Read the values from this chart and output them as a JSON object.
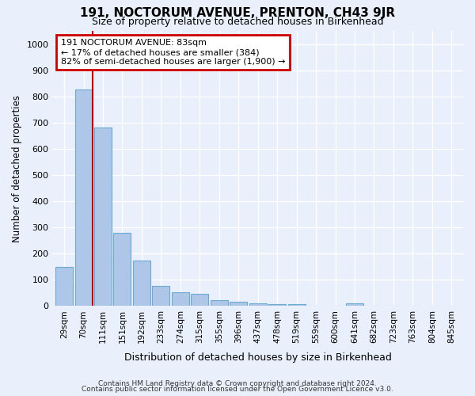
{
  "title": "191, NOCTORUM AVENUE, PRENTON, CH43 9JR",
  "subtitle": "Size of property relative to detached houses in Birkenhead",
  "xlabel": "Distribution of detached houses by size in Birkenhead",
  "ylabel": "Number of detached properties",
  "footer_line1": "Contains HM Land Registry data © Crown copyright and database right 2024.",
  "footer_line2": "Contains public sector information licensed under the Open Government Licence v3.0.",
  "categories": [
    "29sqm",
    "70sqm",
    "111sqm",
    "151sqm",
    "192sqm",
    "233sqm",
    "274sqm",
    "315sqm",
    "355sqm",
    "396sqm",
    "437sqm",
    "478sqm",
    "519sqm",
    "559sqm",
    "600sqm",
    "641sqm",
    "682sqm",
    "723sqm",
    "763sqm",
    "804sqm",
    "845sqm"
  ],
  "values": [
    148,
    825,
    680,
    280,
    172,
    78,
    52,
    47,
    22,
    15,
    10,
    8,
    8,
    0,
    0,
    10,
    0,
    0,
    0,
    0,
    0
  ],
  "bar_color": "#aec6e8",
  "bar_edge_color": "#6aaad4",
  "background_color": "#eaf0fb",
  "grid_color": "#ffffff",
  "annotation_text": "191 NOCTORUM AVENUE: 83sqm\n← 17% of detached houses are smaller (384)\n82% of semi-detached houses are larger (1,900) →",
  "annotation_box_color": "#ffffff",
  "annotation_box_edge": "#cc0000",
  "ylim": [
    0,
    1050
  ],
  "yticks": [
    0,
    100,
    200,
    300,
    400,
    500,
    600,
    700,
    800,
    900,
    1000
  ]
}
